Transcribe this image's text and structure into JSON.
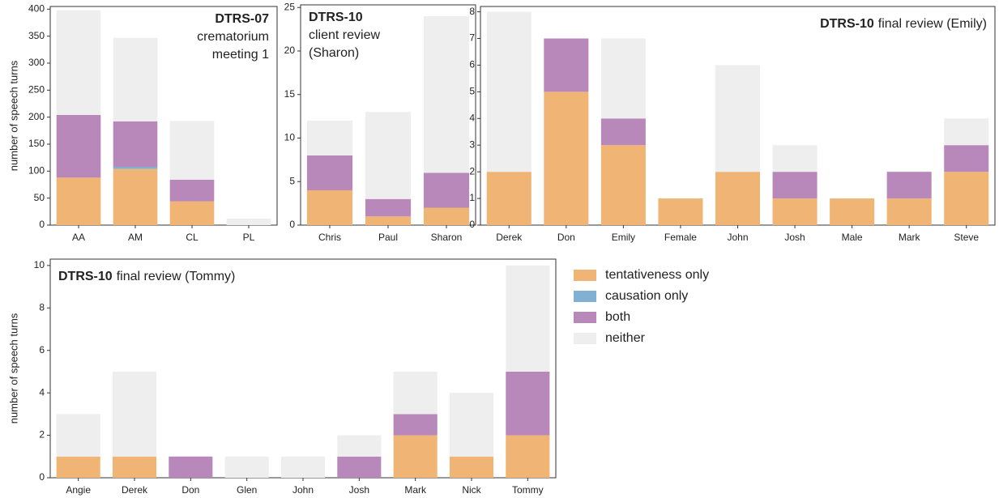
{
  "chart_data": [
    {
      "type": "bar",
      "title_bold": "DTRS-07",
      "title_lines": [
        "crematorium",
        "meeting 1"
      ],
      "y_label": "number of speech turns",
      "categories": [
        "AA",
        "AM",
        "CL",
        "PL"
      ],
      "series": [
        {
          "values": [
            88,
            104,
            44,
            0
          ]
        },
        {
          "values": [
            0,
            4,
            0,
            0
          ]
        },
        {
          "values": [
            116,
            84,
            40,
            0
          ]
        },
        {
          "values": [
            194,
            155,
            109,
            12
          ]
        }
      ],
      "ylim": [
        0,
        405
      ],
      "yticks": [
        0,
        50,
        100,
        150,
        200,
        250,
        300,
        350,
        400
      ]
    },
    {
      "type": "bar",
      "title_bold": "DTRS-10",
      "title_lines": [
        "client review",
        "(Sharon)"
      ],
      "categories": [
        "Chris",
        "Paul",
        "Sharon"
      ],
      "series": [
        {
          "values": [
            4,
            1,
            2
          ]
        },
        {
          "values": [
            0,
            0,
            0
          ]
        },
        {
          "values": [
            4,
            2,
            4
          ]
        },
        {
          "values": [
            4,
            10,
            18
          ]
        }
      ],
      "ylim": [
        0,
        25.3
      ],
      "yticks": [
        0,
        5,
        10,
        15,
        20,
        25
      ]
    },
    {
      "type": "bar",
      "title_bold": "DTRS-10",
      "title_lines": [
        "final review (Emily)"
      ],
      "categories": [
        "Derek",
        "Don",
        "Emily",
        "Female",
        "John",
        "Josh",
        "Male",
        "Mark",
        "Steve"
      ],
      "series": [
        {
          "values": [
            2,
            5,
            3,
            1,
            2,
            1,
            1,
            1,
            2
          ]
        },
        {
          "values": [
            0,
            0,
            0,
            0,
            0,
            0,
            0,
            0,
            0
          ]
        },
        {
          "values": [
            0,
            2,
            1,
            0,
            0,
            1,
            0,
            1,
            1
          ]
        },
        {
          "values": [
            6,
            0,
            3,
            0,
            4,
            1,
            0,
            0,
            1
          ]
        }
      ],
      "ylim": [
        0,
        8.2
      ],
      "yticks": [
        0,
        1,
        2,
        3,
        4,
        5,
        6,
        7,
        8
      ]
    },
    {
      "type": "bar",
      "title_bold": "DTRS-10",
      "title_lines": [
        "final review (Tommy)"
      ],
      "y_label": "number of speech turns",
      "categories": [
        "Angie",
        "Derek",
        "Don",
        "Glen",
        "John",
        "Josh",
        "Mark",
        "Nick",
        "Tommy"
      ],
      "series": [
        {
          "values": [
            1,
            1,
            0,
            0,
            0,
            0,
            2,
            1,
            2
          ]
        },
        {
          "values": [
            0,
            0,
            0,
            0,
            0,
            0,
            0,
            0,
            0
          ]
        },
        {
          "values": [
            0,
            0,
            1,
            0,
            0,
            1,
            1,
            0,
            3
          ]
        },
        {
          "values": [
            2,
            4,
            0,
            1,
            1,
            1,
            2,
            3,
            5
          ]
        }
      ],
      "ylim": [
        0,
        10.3
      ],
      "yticks": [
        0,
        2,
        4,
        6,
        8,
        10
      ]
    }
  ],
  "legend": [
    {
      "name": "tentativeness only",
      "color": "#f0b475"
    },
    {
      "name": "causation only",
      "color": "#80b1d3"
    },
    {
      "name": "both",
      "color": "#b888ba"
    },
    {
      "name": "neither",
      "color": "#eeeeee"
    }
  ]
}
